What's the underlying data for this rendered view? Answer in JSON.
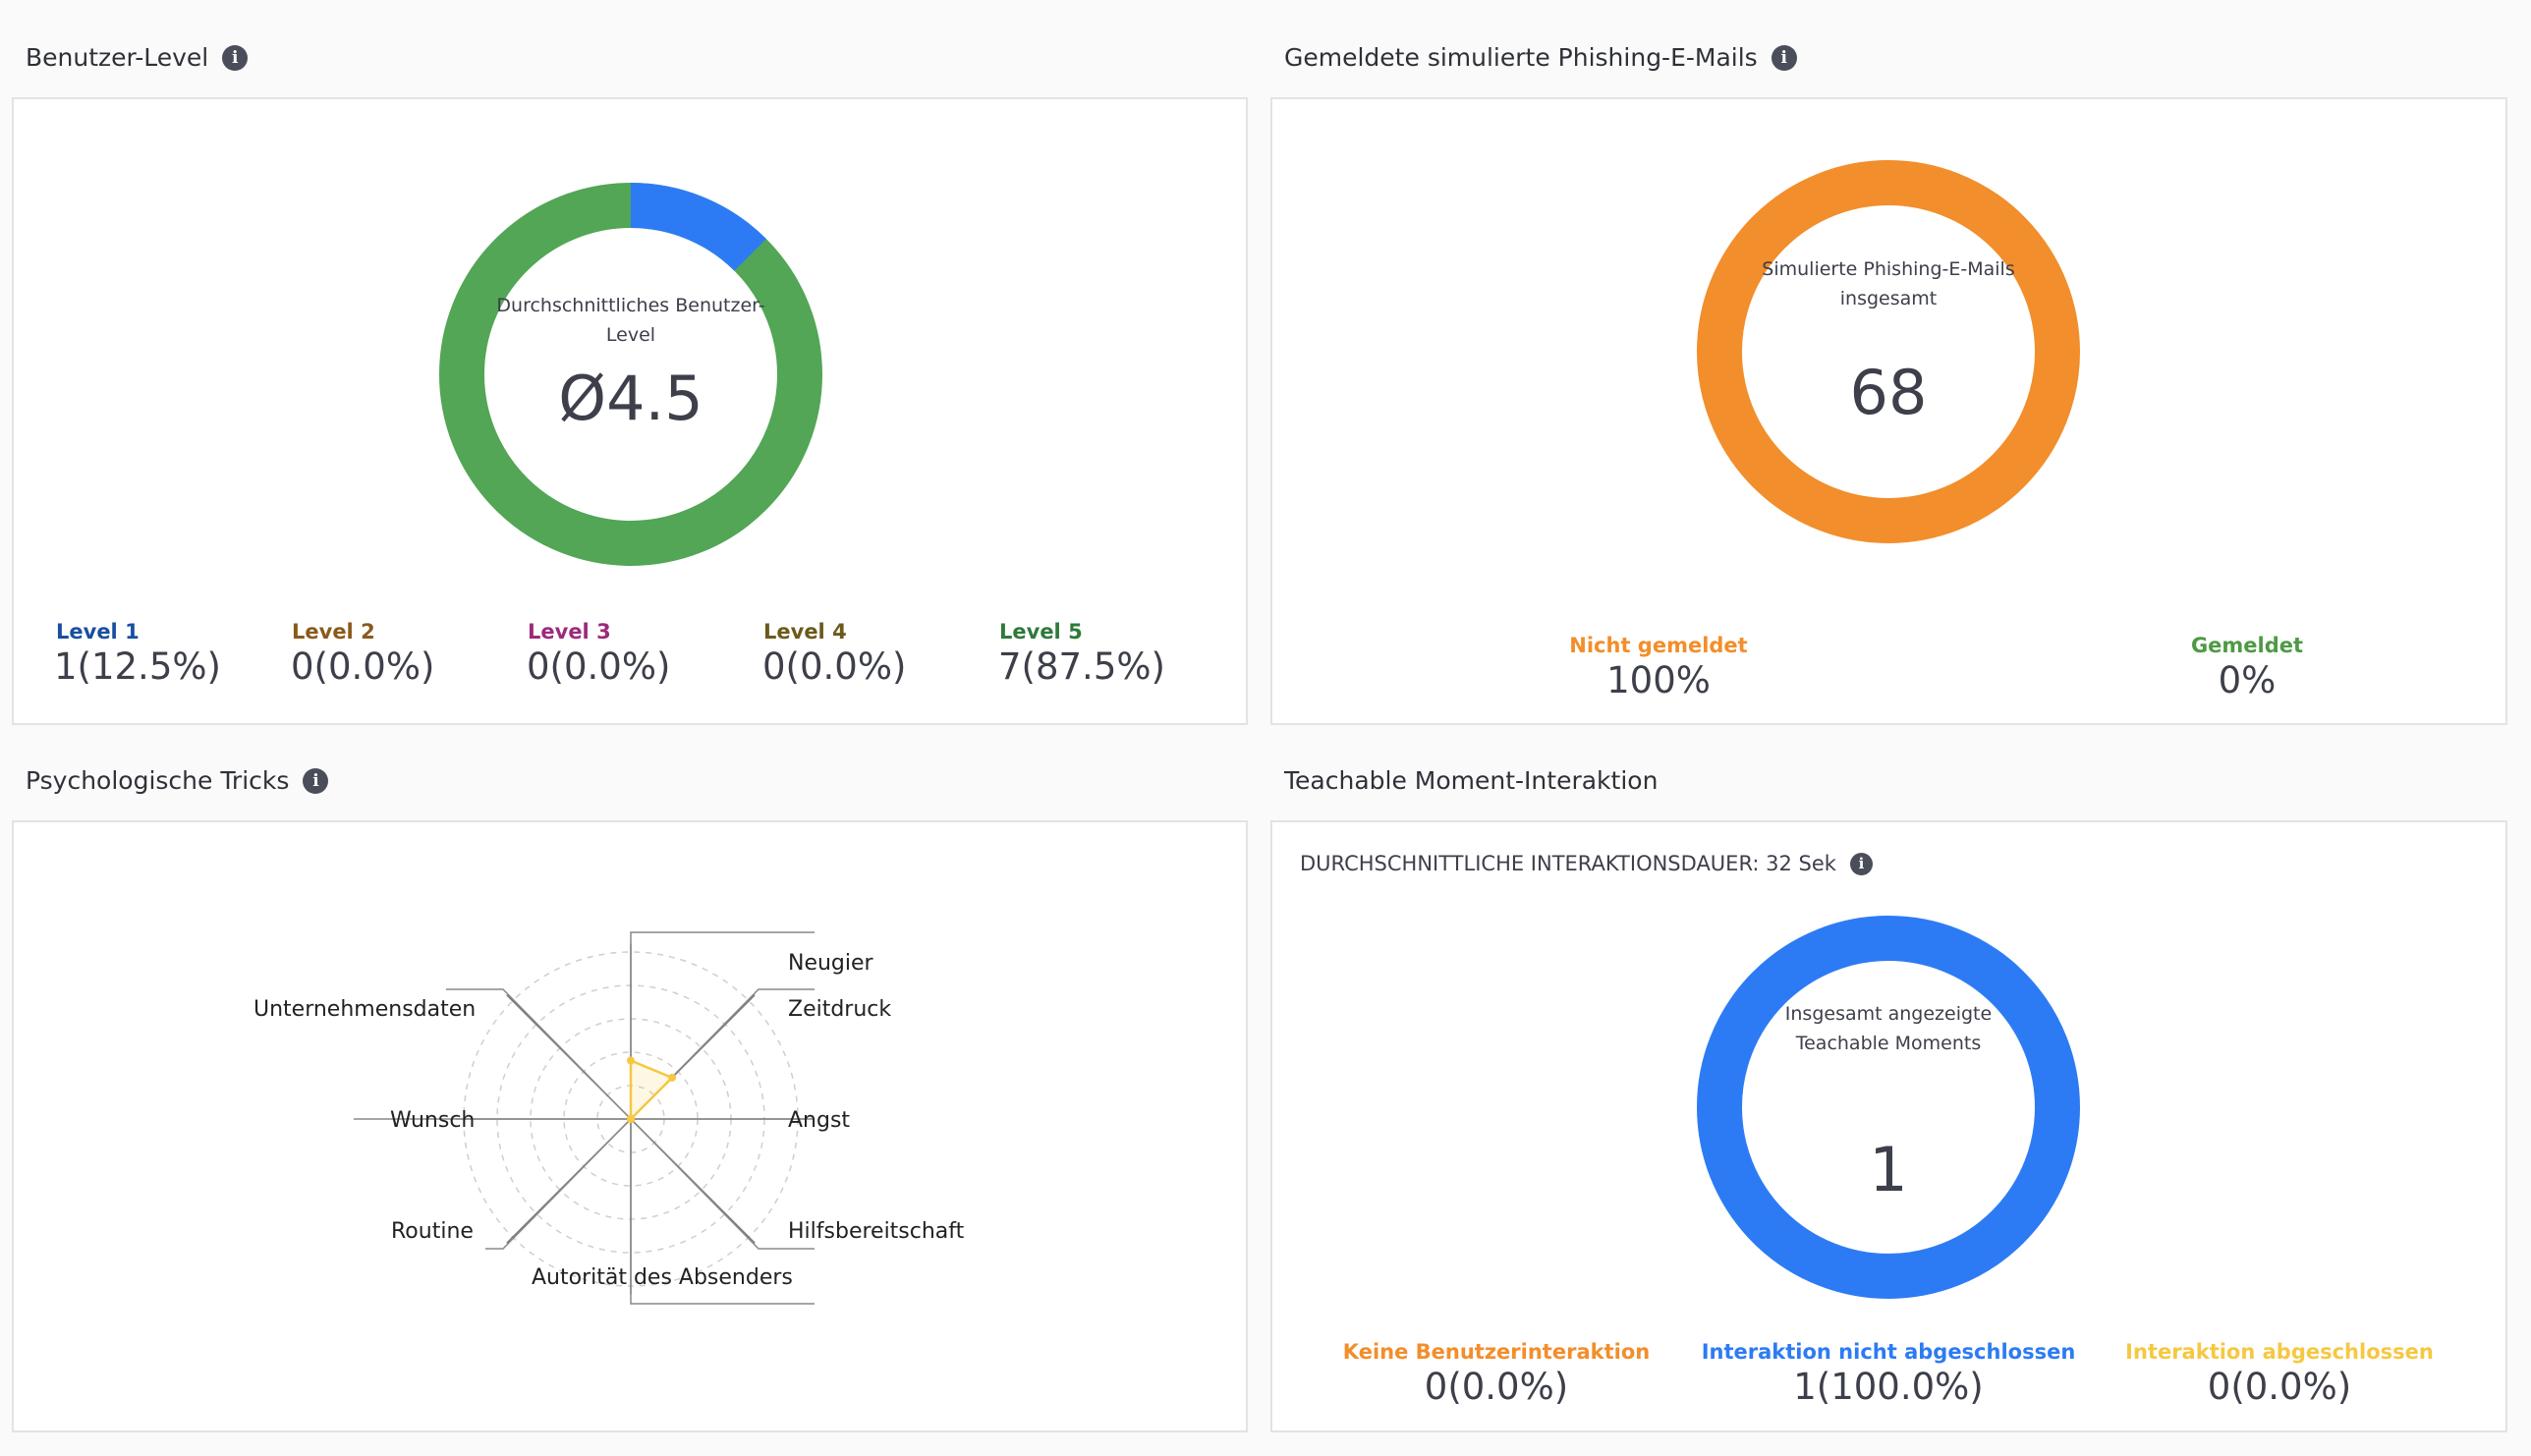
{
  "benutzer_level": {
    "title": "Benutzer-Level",
    "center_label": "Durchschnittliches Benutzer-Level",
    "center_value": "Ø4.5",
    "levels": [
      {
        "label": "Level 1",
        "value": "1(12.5%)",
        "color": "#1a4fa0",
        "fraction": 0.125
      },
      {
        "label": "Level 2",
        "value": "0(0.0%)",
        "color": "#8a5a1c",
        "fraction": 0
      },
      {
        "label": "Level 3",
        "value": "0(0.0%)",
        "color": "#9c2a7a",
        "fraction": 0
      },
      {
        "label": "Level 4",
        "value": "0(0.0%)",
        "color": "#6b5a1c",
        "fraction": 0
      },
      {
        "label": "Level 5",
        "value": "7(87.5%)",
        "color": "#2e7a3a",
        "fraction": 0.875
      }
    ],
    "ring_colors": {
      "level1": "#2d7bf4",
      "level5": "#52a655"
    }
  },
  "phishing": {
    "title": "Gemeldete simulierte Phishing-E-Mails",
    "center_label": "Simulierte Phishing-E-Mails insgesamt",
    "center_value": "68",
    "ring_color": "#f28e2b",
    "not_reported": {
      "label": "Nicht gemeldet",
      "value": "100%",
      "color": "#f28e2b",
      "fraction": 1.0
    },
    "reported": {
      "label": "Gemeldet",
      "value": "0%",
      "color": "#4e9a44",
      "fraction": 0
    }
  },
  "tricks": {
    "title": "Psychologische Tricks",
    "axes": [
      "Neugier",
      "Zeitdruck",
      "Angst",
      "Hilfsbereitschaft",
      "Autorität des Absenders",
      "Routine",
      "Wunsch",
      "Unternehmensdaten"
    ],
    "values": [
      0.35,
      0.35,
      0,
      0,
      0,
      0,
      0,
      0
    ],
    "color": "#f5c842"
  },
  "teachable": {
    "title": "Teachable Moment-Interaktion",
    "avg_duration": "DURCHSCHNITTLICHE INTERAKTIONSDAUER: 32 Sek",
    "center_label": "Insgesamt angezeigte Teachable Moments",
    "center_value": "1",
    "ring_color": "#2d7bf4",
    "items": [
      {
        "label": "Keine Benutzerinteraktion",
        "value": "0(0.0%)",
        "color": "#f28e2b",
        "fraction": 0
      },
      {
        "label": "Interaktion nicht abgeschlossen",
        "value": "1(100.0%)",
        "color": "#2d7bf4",
        "fraction": 1.0
      },
      {
        "label": "Interaktion abgeschlossen",
        "value": "0(0.0%)",
        "color": "#f5c842",
        "fraction": 0
      }
    ]
  },
  "icons": {
    "info": "i"
  }
}
